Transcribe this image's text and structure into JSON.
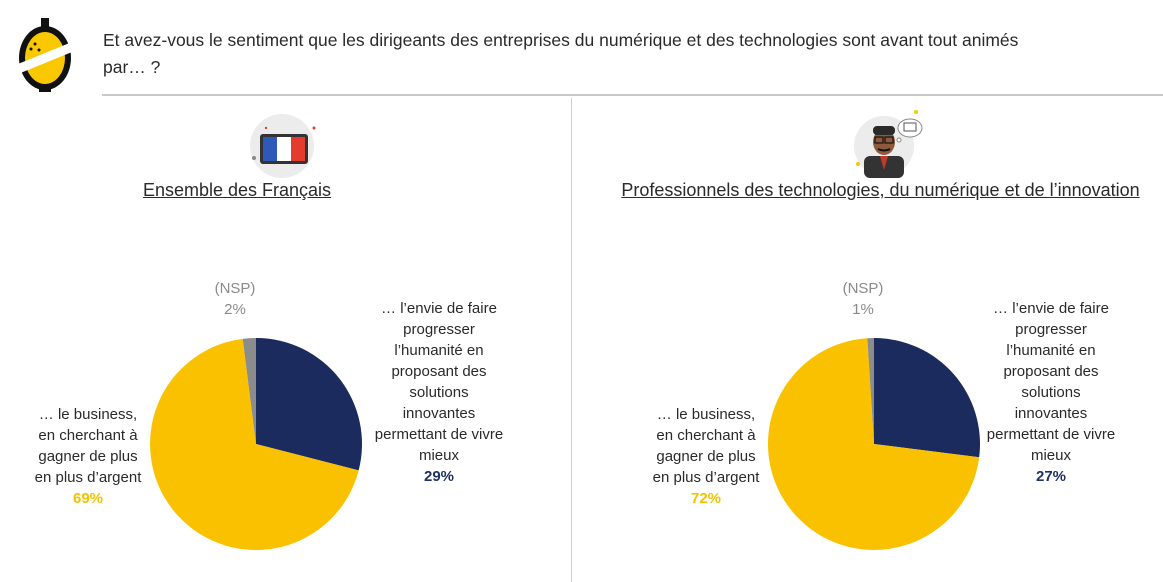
{
  "question": "Et avez-vous le sentiment que les dirigeants des entreprises du numérique et des technologies sont avant tout animés par… ?",
  "colors": {
    "business": "#f9c100",
    "humanite": "#1b2b5e",
    "nsp": "#8c8c8c",
    "divider": "#c8c8c8"
  },
  "icons": {
    "logo": "lemon-logo-icon",
    "left": "french-flag-icon",
    "right": "tech-professional-icon"
  },
  "panels": [
    {
      "title": "Ensemble des Français",
      "labels": {
        "nsp": "(NSP)",
        "nsp_pct": "2%",
        "humanite": "… l’envie de faire progresser l’humanité en proposant des solutions innovantes permettant de vivre mieux",
        "humanite_pct": "29%",
        "business": "… le business, en cherchant à gagner de plus en plus d’argent",
        "business_pct": "69%"
      }
    },
    {
      "title": "Professionnels des technologies, du numérique et de l’innovation",
      "labels": {
        "nsp": "(NSP)",
        "nsp_pct": "1%",
        "humanite": "… l’envie de faire progresser l’humanité en proposant des solutions innovantes permettant de vivre mieux",
        "humanite_pct": "27%",
        "business": "… le business, en cherchant à gagner de plus en plus d’argent",
        "business_pct": "72%"
      }
    }
  ],
  "chart_data": [
    {
      "type": "pie",
      "title": "Ensemble des Français",
      "categories": [
        "… l’envie de faire progresser l’humanité en proposant des solutions innovantes permettant de vivre mieux",
        "… le business, en cherchant à gagner de plus en plus d’argent",
        "(NSP)"
      ],
      "values": [
        29,
        69,
        2
      ],
      "unit": "%"
    },
    {
      "type": "pie",
      "title": "Professionnels des technologies, du numérique et de l’innovation",
      "categories": [
        "… l’envie de faire progresser l’humanité en proposant des solutions innovantes permettant de vivre mieux",
        "… le business, en cherchant à gagner de plus en plus d’argent",
        "(NSP)"
      ],
      "values": [
        27,
        72,
        1
      ],
      "unit": "%"
    }
  ]
}
